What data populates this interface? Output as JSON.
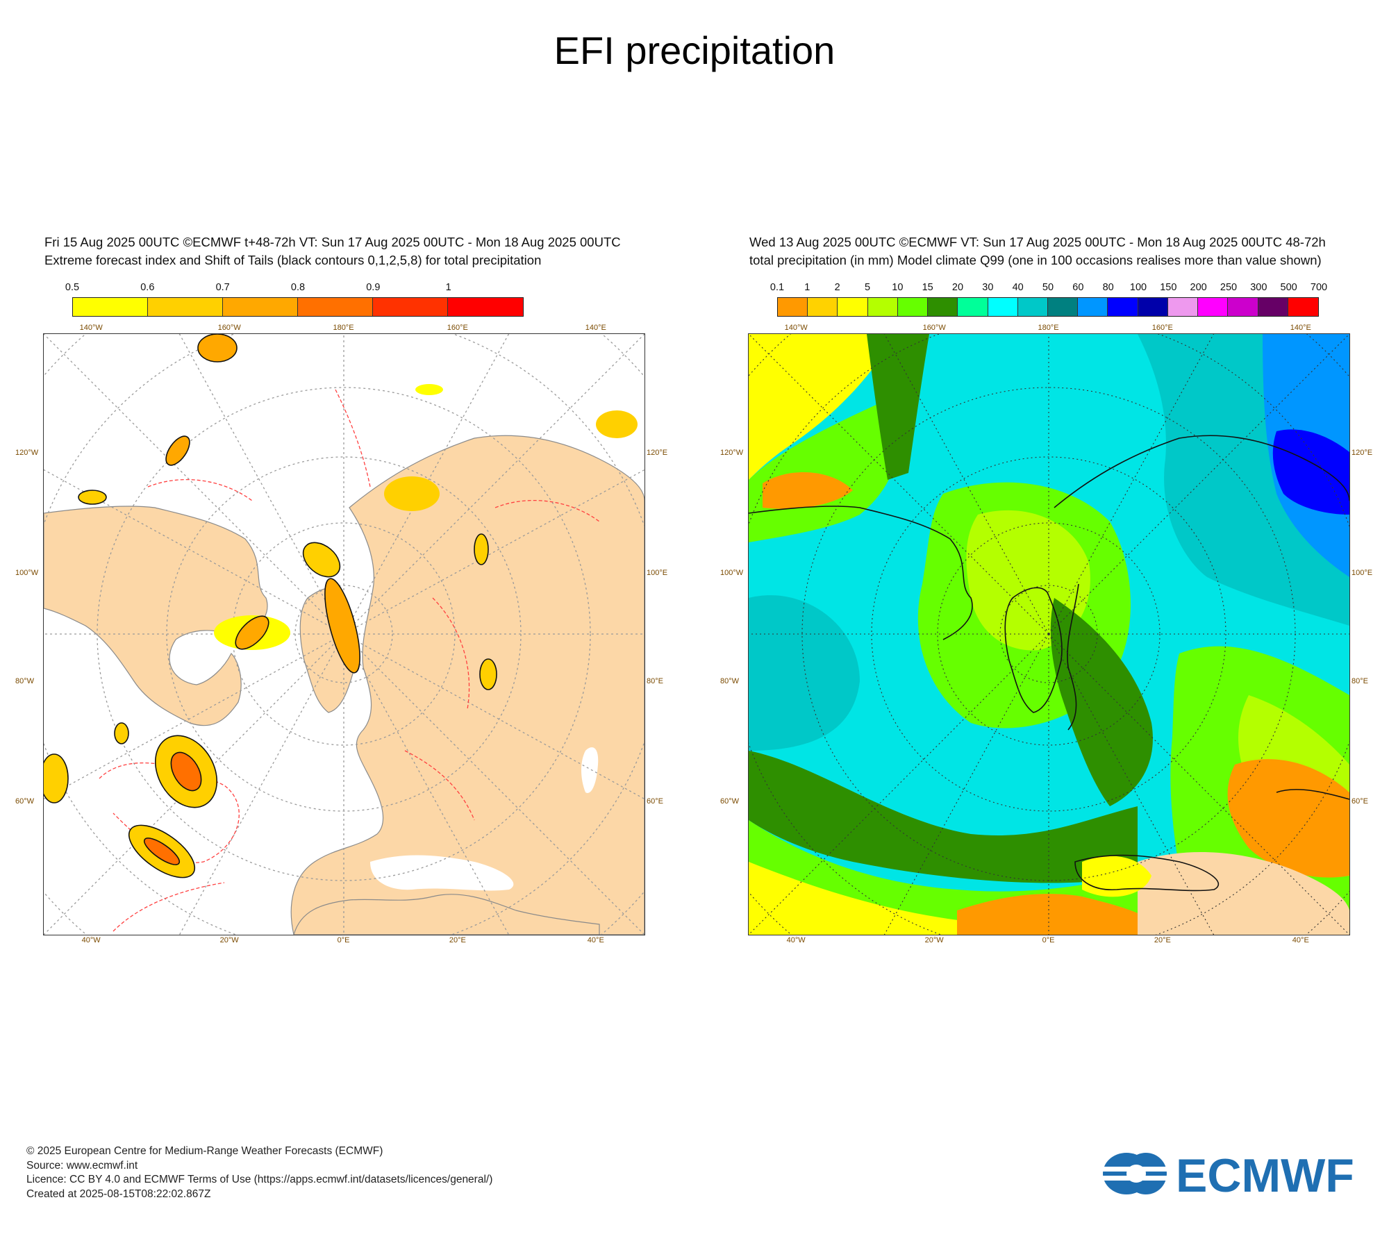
{
  "page": {
    "title": "EFI precipitation"
  },
  "left_panel": {
    "header_line1": "Fri 15 Aug 2025 00UTC ©ECMWF t+48-72h  VT: Sun 17 Aug 2025 00UTC - Mon 18 Aug 2025 00UTC",
    "header_line2": "Extreme forecast index and Shift of Tails (black contours 0,1,2,5,8) for total precipitation",
    "colorbar": {
      "labels": [
        "0.5",
        "0.6",
        "0.7",
        "0.8",
        "0.9",
        "1"
      ],
      "colors": [
        "#ffff00",
        "#ffd000",
        "#ffa800",
        "#ff7000",
        "#ff3200",
        "#ff0000"
      ]
    },
    "top_ticks": [
      "140°W",
      "160°W",
      "180°E",
      "160°E",
      "140°E"
    ],
    "bottom_ticks": [
      "40°W",
      "20°W",
      "0°E",
      "20°E",
      "40°E"
    ],
    "left_ticks": [
      "120°W",
      "100°W",
      "80°W",
      "60°W"
    ],
    "right_ticks": [
      "120°E",
      "100°E",
      "80°E",
      "60°E"
    ],
    "colors": {
      "land": "#fcd7a7",
      "ocean": "#ffffff",
      "coast": "#8a8a8a"
    }
  },
  "right_panel": {
    "header_line1": "Wed 13 Aug 2025 00UTC ©ECMWF VT: Sun 17 Aug 2025 00UTC - Mon 18 Aug 2025 00UTC   48-72h",
    "header_line2": "total precipitation (in mm)  Model climate Q99 (one in 100 occasions realises more than value shown)",
    "colorbar": {
      "labels": [
        "0.1",
        "1",
        "2",
        "5",
        "10",
        "15",
        "20",
        "30",
        "40",
        "50",
        "60",
        "80",
        "100",
        "150",
        "200",
        "250",
        "300",
        "500",
        "700"
      ],
      "colors": [
        "#ff9900",
        "#ffd200",
        "#ffff00",
        "#b4ff00",
        "#66ff00",
        "#2e8f00",
        "#00ff99",
        "#00ffff",
        "#00c8c8",
        "#008080",
        "#0096ff",
        "#0000ff",
        "#0000aa",
        "#ee99ee",
        "#ff00ff",
        "#cc00cc",
        "#660066",
        "#ff0000"
      ]
    },
    "top_ticks": [
      "140°W",
      "160°W",
      "180°E",
      "160°E",
      "140°E"
    ],
    "bottom_ticks": [
      "40°W",
      "20°W",
      "0°E",
      "20°E",
      "40°E"
    ],
    "left_ticks": [
      "120°W",
      "100°W",
      "80°W",
      "60°W"
    ],
    "right_ticks": [
      "120°E",
      "100°E",
      "80°E",
      "60°E"
    ]
  },
  "footer": {
    "line1": "© 2025 European Centre for Medium-Range Weather Forecasts (ECMWF)",
    "line2": "Source: www.ecmwf.int",
    "line3": "Licence: CC BY 4.0 and ECMWF Terms of Use (https://apps.ecmwf.int/datasets/licences/general/)",
    "line4": "Created at 2025-08-15T08:22:02.867Z"
  },
  "logo": {
    "text": "ECMWF",
    "color": "#1f6fb2"
  }
}
